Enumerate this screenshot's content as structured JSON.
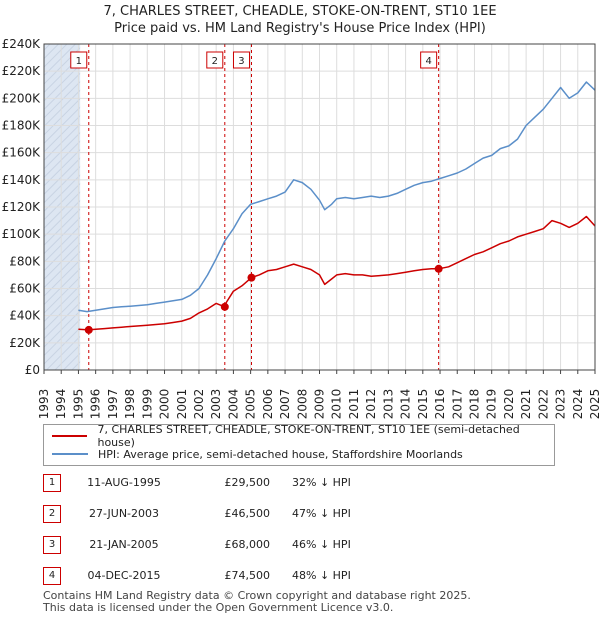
{
  "title_line1": "7, CHARLES STREET, CHEADLE, STOKE-ON-TRENT, ST10 1EE",
  "title_line2": "Price paid vs. HM Land Registry's House Price Index (HPI)",
  "legend": {
    "property": "7, CHARLES STREET, CHEADLE, STOKE-ON-TRENT, ST10 1EE (semi-detached house)",
    "hpi": "HPI: Average price, semi-detached house, Staffordshire Moorlands"
  },
  "colors": {
    "property": "#cc0000",
    "hpi": "#5b8fc9",
    "shade": "#dde6f2",
    "grid": "#dddddd"
  },
  "sales": [
    {
      "num": "1",
      "date": "11-AUG-1995",
      "price": "£29,500",
      "hpi": "32% ↓ HPI"
    },
    {
      "num": "2",
      "date": "27-JUN-2003",
      "price": "£46,500",
      "hpi": "47% ↓ HPI"
    },
    {
      "num": "3",
      "date": "21-JAN-2005",
      "price": "£68,000",
      "hpi": "46% ↓ HPI"
    },
    {
      "num": "4",
      "date": "04-DEC-2015",
      "price": "£74,500",
      "hpi": "48% ↓ HPI"
    }
  ],
  "footer": {
    "line1": "Contains HM Land Registry data © Crown copyright and database right 2025.",
    "line2": "This data is licensed under the Open Government Licence v3.0."
  },
  "chart_data": {
    "type": "line",
    "title": "7, CHARLES STREET, CHEADLE, STOKE-ON-TRENT, ST10 1EE",
    "xlim": [
      1993,
      2025
    ],
    "ylim": [
      0,
      240000
    ],
    "x_ticks": [
      "1993",
      "1994",
      "1995",
      "1996",
      "1997",
      "1998",
      "1999",
      "2000",
      "2001",
      "2002",
      "2003",
      "2004",
      "2005",
      "2006",
      "2007",
      "2008",
      "2009",
      "2010",
      "2011",
      "2012",
      "2013",
      "2014",
      "2015",
      "2016",
      "2017",
      "2018",
      "2019",
      "2020",
      "2021",
      "2022",
      "2023",
      "2024",
      "2025"
    ],
    "y_ticks": [
      {
        "value": 0,
        "label": "£0"
      },
      {
        "value": 20000,
        "label": "£20K"
      },
      {
        "value": 40000,
        "label": "£40K"
      },
      {
        "value": 60000,
        "label": "£60K"
      },
      {
        "value": 80000,
        "label": "£80K"
      },
      {
        "value": 100000,
        "label": "£100K"
      },
      {
        "value": 120000,
        "label": "£120K"
      },
      {
        "value": 140000,
        "label": "£140K"
      },
      {
        "value": 160000,
        "label": "£160K"
      },
      {
        "value": 180000,
        "label": "£180K"
      },
      {
        "value": 200000,
        "label": "£200K"
      },
      {
        "value": 220000,
        "label": "£220K"
      },
      {
        "value": 240000,
        "label": "£240K"
      }
    ],
    "shaded_region": [
      1993,
      1995.1
    ],
    "markers": [
      {
        "label": "1",
        "x": 1995.6,
        "y": 29500
      },
      {
        "label": "2",
        "x": 2003.5,
        "y": 46500
      },
      {
        "label": "3",
        "x": 2005.05,
        "y": 68000
      },
      {
        "label": "4",
        "x": 2015.92,
        "y": 74500
      }
    ],
    "series": [
      {
        "name": "HPI: Average price, semi-detached house, Staffordshire Moorlands",
        "x": [
          1995.0,
          1995.5,
          1996.0,
          1996.5,
          1997.0,
          1997.5,
          1998.0,
          1998.5,
          1999.0,
          1999.5,
          2000.0,
          2000.5,
          2001.0,
          2001.5,
          2002.0,
          2002.5,
          2003.0,
          2003.5,
          2004.0,
          2004.5,
          2005.0,
          2005.5,
          2006.0,
          2006.5,
          2007.0,
          2007.5,
          2008.0,
          2008.5,
          2009.0,
          2009.3,
          2009.7,
          2010.0,
          2010.5,
          2011.0,
          2011.5,
          2012.0,
          2012.5,
          2013.0,
          2013.5,
          2014.0,
          2014.5,
          2015.0,
          2015.5,
          2016.0,
          2016.5,
          2017.0,
          2017.5,
          2018.0,
          2018.5,
          2019.0,
          2019.5,
          2020.0,
          2020.5,
          2021.0,
          2021.5,
          2022.0,
          2022.5,
          2023.0,
          2023.5,
          2024.0,
          2024.5,
          2025.0
        ],
        "values": [
          44000,
          43000,
          44000,
          45000,
          46000,
          46500,
          47000,
          47500,
          48000,
          49000,
          50000,
          51000,
          52000,
          55000,
          60000,
          70000,
          82000,
          95000,
          104000,
          115000,
          122000,
          124000,
          126000,
          128000,
          131000,
          140000,
          138000,
          133000,
          125000,
          118000,
          122000,
          126000,
          127000,
          126000,
          127000,
          128000,
          127000,
          128000,
          130000,
          133000,
          136000,
          138000,
          139000,
          141000,
          143000,
          145000,
          148000,
          152000,
          156000,
          158000,
          163000,
          165000,
          170000,
          180000,
          186000,
          192000,
          200000,
          208000,
          200000,
          204000,
          212000,
          206000
        ]
      },
      {
        "name": "7, CHARLES STREET, CHEADLE, STOKE-ON-TRENT, ST10 1EE (semi-detached house)",
        "x": [
          1995.0,
          1995.6,
          1996.0,
          1996.5,
          1997.0,
          1997.5,
          1998.0,
          1998.5,
          1999.0,
          1999.5,
          2000.0,
          2000.5,
          2001.0,
          2001.5,
          2002.0,
          2002.5,
          2003.0,
          2003.5,
          2003.6,
          2004.0,
          2004.5,
          2005.05,
          2005.5,
          2006.0,
          2006.5,
          2007.0,
          2007.5,
          2008.0,
          2008.5,
          2009.0,
          2009.3,
          2009.7,
          2010.0,
          2010.5,
          2011.0,
          2011.5,
          2012.0,
          2012.5,
          2013.0,
          2013.5,
          2014.0,
          2014.5,
          2015.0,
          2015.5,
          2015.92,
          2016.5,
          2017.0,
          2017.5,
          2018.0,
          2018.5,
          2019.0,
          2019.5,
          2020.0,
          2020.5,
          2021.0,
          2021.5,
          2022.0,
          2022.5,
          2023.0,
          2023.5,
          2024.0,
          2024.5,
          2025.0
        ],
        "values": [
          30000,
          29500,
          30000,
          30500,
          31000,
          31500,
          32000,
          32500,
          33000,
          33500,
          34000,
          35000,
          36000,
          38000,
          42000,
          45000,
          49000,
          46500,
          50000,
          58000,
          62000,
          68000,
          70000,
          73000,
          74000,
          76000,
          78000,
          76000,
          74000,
          70000,
          63000,
          67000,
          70000,
          71000,
          70000,
          70000,
          69000,
          69500,
          70000,
          71000,
          72000,
          73000,
          74000,
          74500,
          74500,
          76000,
          79000,
          82000,
          85000,
          87000,
          90000,
          93000,
          95000,
          98000,
          100000,
          102000,
          104000,
          110000,
          108000,
          105000,
          108000,
          113000,
          106000
        ]
      }
    ]
  }
}
